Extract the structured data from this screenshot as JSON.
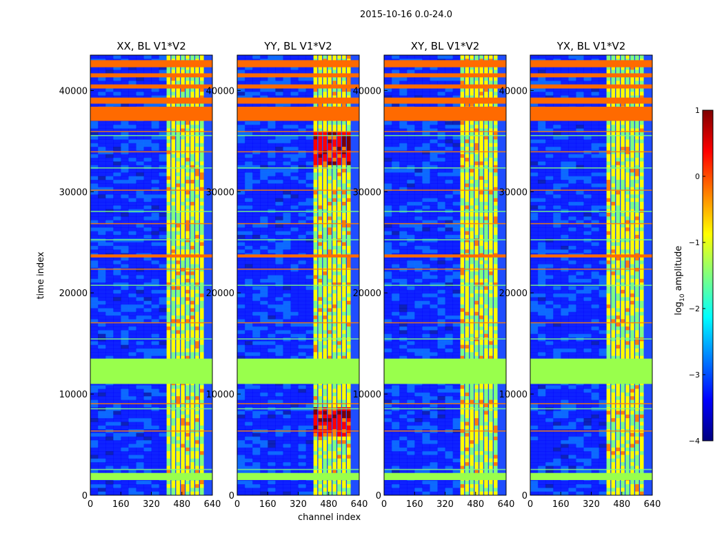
{
  "figure": {
    "title": "2015-10-16 0.0-24.0"
  },
  "colors": {
    "jet_stops": [
      "#00007f",
      "#0000ff",
      "#007fff",
      "#00ffff",
      "#7fff7f",
      "#ffff00",
      "#ff7f00",
      "#ff0000",
      "#7f0000"
    ],
    "orange_band": "#ff6a00",
    "green_band": "#99ff4c",
    "background_blue": "#1f4dff",
    "axis": "#000000"
  },
  "chart_data": [
    {
      "type": "heatmap",
      "title": "XX, BL V1*V2",
      "xlabel": "channel index",
      "ylabel": "time index",
      "xlim": [
        0,
        640
      ],
      "ylim": [
        0,
        43500
      ],
      "xticks": [
        "0",
        "160",
        "320",
        "480",
        "640"
      ],
      "yticks": [
        "0",
        "10000",
        "20000",
        "30000",
        "40000"
      ],
      "signal_channels": [
        400,
        600
      ],
      "flagged_orange_rows": [
        [
          37000,
          38400
        ],
        [
          38700,
          39300
        ],
        [
          40200,
          40600
        ],
        [
          41300,
          41700
        ],
        [
          42300,
          43000
        ],
        [
          23500,
          23800
        ]
      ],
      "flagged_green_rows": [
        [
          11000,
          13500
        ],
        [
          1500,
          2200
        ]
      ]
    },
    {
      "type": "heatmap",
      "title": "YY, BL V1*V2",
      "xlabel": "channel index",
      "xlim": [
        0,
        640
      ],
      "ylim": [
        0,
        43500
      ],
      "xticks": [
        "0",
        "160",
        "320",
        "480",
        "640"
      ],
      "yticks": [
        "0",
        "10000",
        "20000",
        "30000",
        "40000"
      ],
      "signal_channels": [
        400,
        600
      ],
      "flagged_orange_rows": [
        [
          37000,
          38400
        ],
        [
          38700,
          39300
        ],
        [
          40200,
          40600
        ],
        [
          41300,
          41700
        ],
        [
          42300,
          43000
        ],
        [
          23500,
          23800
        ]
      ],
      "flagged_green_rows": [
        [
          11000,
          13500
        ],
        [
          1500,
          2200
        ]
      ]
    },
    {
      "type": "heatmap",
      "title": "XY, BL V1*V2",
      "xlim": [
        0,
        640
      ],
      "ylim": [
        0,
        43500
      ],
      "xticks": [
        "0",
        "160",
        "320",
        "480",
        "640"
      ],
      "yticks": [
        "0",
        "10000",
        "20000",
        "30000",
        "40000"
      ],
      "signal_channels": [
        400,
        600
      ],
      "flagged_orange_rows": [
        [
          37000,
          38400
        ],
        [
          38700,
          39300
        ],
        [
          40200,
          40600
        ],
        [
          41300,
          41700
        ],
        [
          42300,
          43000
        ],
        [
          23500,
          23800
        ]
      ],
      "flagged_green_rows": [
        [
          11000,
          13500
        ],
        [
          1500,
          2200
        ]
      ]
    },
    {
      "type": "heatmap",
      "title": "YX, BL V1*V2",
      "xlim": [
        0,
        640
      ],
      "ylim": [
        0,
        43500
      ],
      "xticks": [
        "0",
        "160",
        "320",
        "480",
        "640"
      ],
      "yticks": [
        "0",
        "10000",
        "20000",
        "30000",
        "40000"
      ],
      "signal_channels": [
        400,
        600
      ],
      "flagged_orange_rows": [
        [
          37000,
          38400
        ],
        [
          38700,
          39300
        ],
        [
          40200,
          40600
        ],
        [
          41300,
          41700
        ],
        [
          42300,
          43000
        ],
        [
          23500,
          23800
        ]
      ],
      "flagged_green_rows": [
        [
          11000,
          13500
        ],
        [
          1500,
          2200
        ]
      ]
    }
  ],
  "colorbar": {
    "label": "log10 amplitude",
    "range": [
      -4,
      1
    ],
    "ticks": [
      "1",
      "0",
      "−1",
      "−2",
      "−3",
      "−4"
    ]
  }
}
